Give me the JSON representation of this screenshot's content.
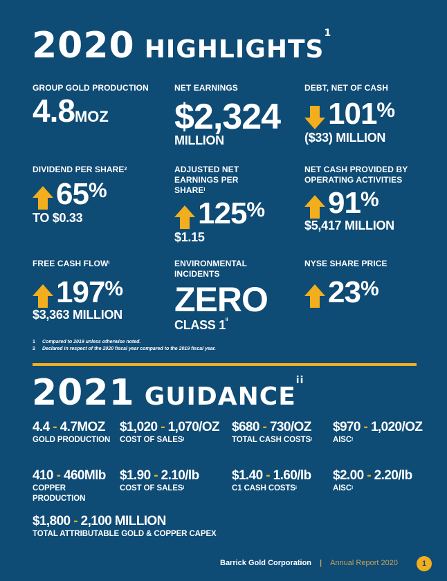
{
  "highlights": {
    "year": "2020",
    "title": "HIGHLIGHTS",
    "title_sup": "1",
    "items": [
      {
        "label": "GROUP GOLD PRODUCTION",
        "value": "4.8",
        "unit": "MOZ"
      },
      {
        "label": "NET EARNINGS",
        "value": "$2,324",
        "sub": "MILLION"
      },
      {
        "label": "DEBT, NET OF CASH",
        "arrow": "down",
        "value": "101",
        "pct": "%",
        "sub": "($33) MILLION"
      },
      {
        "label": "DIVIDEND PER SHARE",
        "label_sup": "2",
        "arrow": "up",
        "value": "65",
        "pct": "%",
        "sub": "TO $0.33"
      },
      {
        "label": "ADJUSTED NET EARNINGS PER SHARE",
        "label_sup": "i",
        "arrow": "up",
        "value": "125",
        "pct": "%",
        "sub": "$1.15"
      },
      {
        "label": "NET CASH PROVIDED BY OPERATING ACTIVITIES",
        "arrow": "up",
        "value": "91",
        "pct": "%",
        "sub": "$5,417 MILLION"
      },
      {
        "label": "FREE CASH FLOW",
        "label_sup": "i",
        "arrow": "up",
        "value": "197",
        "pct": "%",
        "sub": "$3,363 MILLION"
      },
      {
        "label": "ENVIRONMENTAL INCIDENTS",
        "value": "ZERO",
        "sub": "CLASS 1",
        "sub_sup": "ii"
      },
      {
        "label": "NYSE SHARE PRICE",
        "arrow": "up",
        "value": "23",
        "pct": "%"
      }
    ],
    "footnotes": [
      {
        "mark": "1",
        "text": "Compared to 2019 unless otherwise noted."
      },
      {
        "mark": "2",
        "text": "Declared in respect of the 2020 fiscal year compared to the 2019 fiscal year."
      }
    ]
  },
  "guidance": {
    "year": "2021",
    "title": "GUIDANCE",
    "title_sup": "ii",
    "items": [
      {
        "low": "4.4",
        "high": "4.7MOZ",
        "label": "GOLD PRODUCTION"
      },
      {
        "low": "$1,020",
        "high": "1,070/OZ",
        "label": "COST OF SALES",
        "label_sup": "i"
      },
      {
        "low": "$680",
        "high": "730/OZ",
        "label": "TOTAL CASH COSTS",
        "label_sup": "i"
      },
      {
        "low": "$970",
        "high": "1,020/OZ",
        "label": "AISC",
        "label_sup": "i"
      },
      {
        "low": "410",
        "high": "460Mlb",
        "label": "COPPER PRODUCTION"
      },
      {
        "low": "$1.90",
        "high": "2.10/lb",
        "label": "COST OF SALES",
        "label_sup": "i"
      },
      {
        "low": "$1.40",
        "high": "1.60/lb",
        "label": "C1 CASH COSTS",
        "label_sup": "i"
      },
      {
        "low": "$2.00",
        "high": "2.20/lb",
        "label": "AISC",
        "label_sup": "i"
      },
      {
        "low": "$1,800",
        "high": "2,100 MILLION",
        "label": "TOTAL ATTRIBUTABLE GOLD & COPPER CAPEX"
      }
    ]
  },
  "footer": {
    "company": "Barrick Gold Corporation",
    "separator": "|",
    "report": "Annual Report 2020",
    "page": "1"
  },
  "colors": {
    "background": "#0e4b75",
    "accent": "#f2ae1c",
    "text": "#ffffff"
  }
}
